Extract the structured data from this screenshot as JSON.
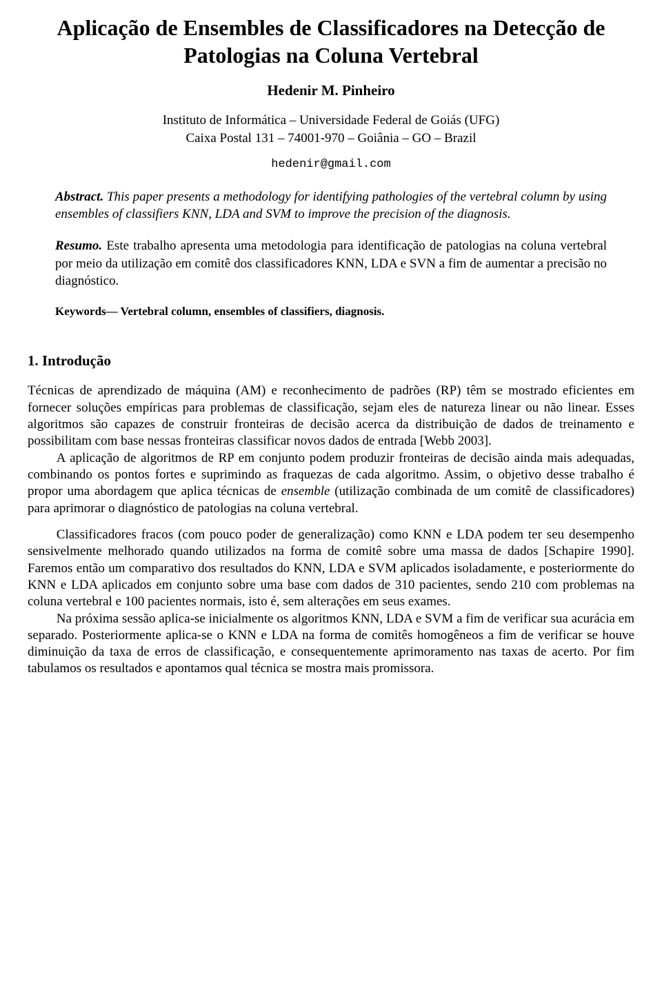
{
  "title": "Aplicação de Ensembles de Classificadores na Detecção de Patologias na Coluna Vertebral",
  "author": "Hedenir M. Pinheiro",
  "affiliation_line1": "Instituto de Informática – Universidade Federal de Goiás (UFG)",
  "affiliation_line2": "Caixa Postal 131 – 74001-970 – Goiânia – GO – Brazil",
  "email": "hedenir@gmail.com",
  "abstract": {
    "heading": "Abstract.",
    "text": " This paper presents a methodology for identifying pathologies of the vertebral column by using ensembles of classifiers KNN, LDA and SVM to improve the precision of the diagnosis."
  },
  "resumo": {
    "heading": "Resumo.",
    "text": " Este trabalho apresenta uma metodologia para identificação de patologias na coluna vertebral por meio da utilização em comitê dos classificadores KNN, LDA e SVN a fim de aumentar a precisão no diagnóstico."
  },
  "keywords": {
    "label": "Keywords—",
    "text": " Vertebral column, ensembles of classifiers, diagnosis."
  },
  "section1": {
    "heading": "1. Introdução",
    "p1a": "Técnicas de aprendizado de máquina (AM) e reconhecimento de padrões (RP) têm se mostrado eficientes em fornecer soluções empíricas para problemas de classificação, sejam eles de natureza linear ou não linear. Esses algoritmos são capazes de construir fronteiras de decisão acerca da distribuição de dados de treinamento e possibilitam com base nessas fronteiras classificar novos dados de entrada [Webb 2003].",
    "p1b_pre": "A aplicação de algoritmos de RP em conjunto podem produzir fronteiras de decisão ainda mais adequadas, combinando os pontos fortes e suprimindo as fraquezas de cada algoritmo. Assim, o objetivo desse trabalho é propor uma abordagem que aplica técnicas de ",
    "p1b_em": "ensemble",
    "p1b_post": " (utilização combinada de um comitê de classificadores) para aprimorar o diagnóstico de patologias na coluna vertebral.",
    "p2": "Classificadores fracos (com pouco poder de generalização) como KNN e LDA podem ter seu desempenho sensivelmente melhorado quando utilizados na forma de comitê sobre uma massa de dados [Schapire 1990]. Faremos então um comparativo dos resultados do KNN, LDA e SVM aplicados isoladamente, e posteriormente do KNN e LDA aplicados em conjunto sobre uma base com dados de 310 pacientes, sendo 210 com problemas na coluna vertebral e 100 pacientes normais, isto é, sem alterações em seus exames.",
    "p3": "Na próxima sessão aplica-se inicialmente os algoritmos KNN, LDA e SVM a fim de verificar sua acurácia em separado. Posteriormente aplica-se o KNN e LDA na forma de comitês homogêneos a fim de verificar se houve diminuição da taxa de erros de classificação, e consequentemente aprimoramento nas taxas de acerto. Por fim tabulamos os resultados e apontamos qual técnica se mostra mais promissora."
  }
}
